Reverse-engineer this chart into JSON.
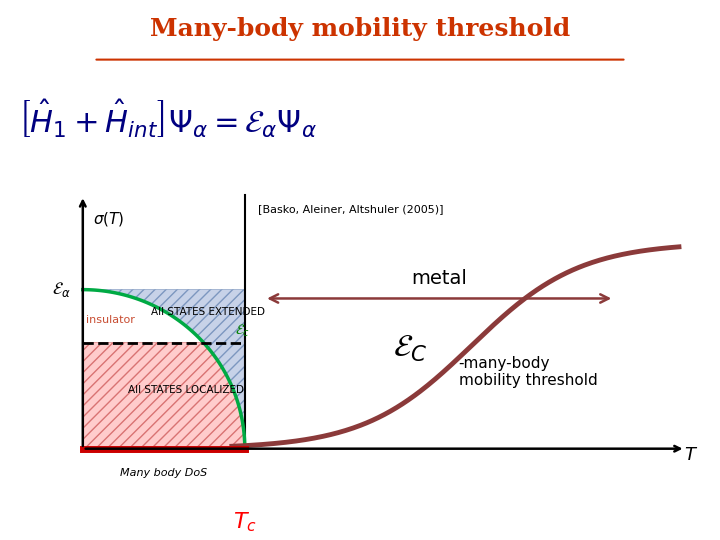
{
  "title": "Many-body mobility threshold",
  "title_color": "#cc3300",
  "bg_color": "#ffffff",
  "citation": "[Basko, Aleiner, Altshuler (2005)]",
  "metal_label": "metal",
  "label_extended": "All STATES EXTENDED",
  "label_localized": "All STATES LOCALIZED",
  "label_dos": "Many body DoS",
  "label_Tc": "$T_c$",
  "label_T": "$T$",
  "label_sigma": "$\\sigma(T)$",
  "label_epsilon_alpha": "$\\mathcal{E}_\\alpha$",
  "label_Ec_symbol": "$\\mathcal{E}_C$",
  "label_mb_threshold": "-many-body\nmobility threshold",
  "label_epsilon_c": "$\\mathcal{E}_c$",
  "curve_color": "#8b3a3a",
  "blue_fill_color": "#aabbdd",
  "red_fill_color": "#ffaaaa",
  "green_outline_color": "#00aa44",
  "red_dos_color": "#cc0000",
  "arrow_color": "#8b3a3a"
}
